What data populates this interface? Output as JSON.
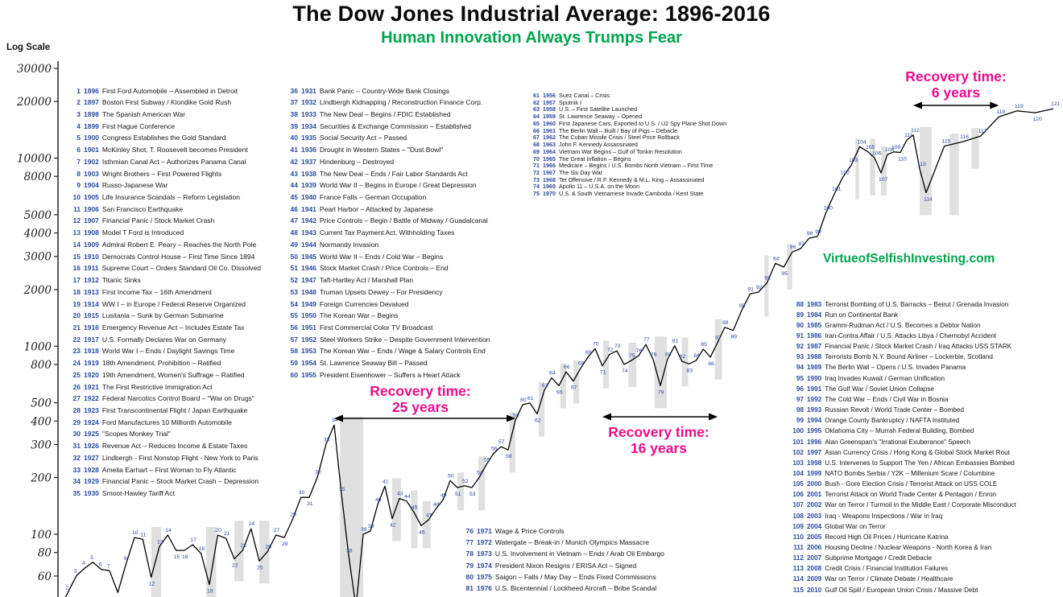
{
  "title": "The Dow Jones Industrial Average: 1896-2016",
  "subtitle": "Human Innovation Always Trumps Fear",
  "log_scale_label": "Log Scale",
  "watermark": "VirtueofSelfishInvesting.com",
  "annotations": [
    {
      "label": "Recovery time:",
      "value": "25 years"
    },
    {
      "label": "Recovery time:",
      "value": "16 years"
    },
    {
      "label": "Recovery time:",
      "value": "6 years"
    }
  ],
  "colors": {
    "title": "#0a0a0a",
    "subtitle_green": "#00a54f",
    "annotation_pink": "#ec0c8c",
    "event_index_blue": "#2c4aa0",
    "watermark_green": "#00a54f",
    "line": "#000000",
    "recession_band": "#d6d6d6"
  },
  "chart_data": {
    "type": "line",
    "title": "The Dow Jones Industrial Average: 1896-2016",
    "xlabel": "",
    "ylabel": "Log Scale",
    "y_scale": "log",
    "ylim": [
      55,
      30000
    ],
    "x_range": [
      1896,
      2016
    ],
    "y_ticks": [
      30000,
      20000,
      10000,
      8000,
      5000,
      4000,
      3000,
      2000,
      1000,
      800,
      500,
      400,
      300,
      200,
      100,
      80,
      60
    ],
    "grid": false,
    "legend": "none",
    "x": [
      1896,
      1897,
      1898,
      1899,
      1900,
      1901,
      1902,
      1903,
      1904,
      1905,
      1906,
      1907,
      1908,
      1909,
      1910,
      1911,
      1912,
      1913,
      1914,
      1915,
      1916,
      1917,
      1918,
      1919,
      1920,
      1921,
      1922,
      1923,
      1924,
      1925,
      1926,
      1927,
      1928,
      1929,
      1930,
      1931,
      1932,
      1933,
      1934,
      1935,
      1936,
      1937,
      1938,
      1939,
      1940,
      1941,
      1942,
      1943,
      1944,
      1945,
      1946,
      1947,
      1948,
      1949,
      1950,
      1951,
      1952,
      1953,
      1954,
      1955,
      1956,
      1957,
      1958,
      1959,
      1960,
      1961,
      1962,
      1963,
      1964,
      1965,
      1966,
      1967,
      1968,
      1969,
      1970,
      1971,
      1972,
      1973,
      1974,
      1975,
      1976,
      1977,
      1978,
      1979,
      1980,
      1981,
      1982,
      1983,
      1984,
      1985,
      1986,
      1987,
      1988,
      1989,
      1990,
      1991,
      1992,
      1993,
      1994,
      1995,
      1996,
      1997,
      1998,
      1999,
      2000,
      2001,
      2002,
      2003,
      2004,
      2005,
      2006,
      2007,
      2008,
      2009,
      2010,
      2011,
      2012,
      2013,
      2014,
      2015,
      2016
    ],
    "values": [
      40,
      49,
      60,
      66,
      71,
      65,
      64,
      49,
      70,
      96,
      94,
      59,
      86,
      99,
      82,
      82,
      88,
      79,
      54,
      99,
      95,
      74,
      82,
      107,
      72,
      81,
      99,
      96,
      120,
      157,
      157,
      202,
      300,
      381,
      164,
      77,
      41,
      100,
      104,
      144,
      180,
      121,
      155,
      150,
      131,
      111,
      119,
      136,
      152,
      193,
      177,
      181,
      177,
      200,
      235,
      269,
      292,
      281,
      404,
      488,
      499,
      436,
      584,
      679,
      616,
      731,
      652,
      763,
      874,
      969,
      786,
      905,
      944,
      800,
      839,
      890,
      1020,
      851,
      616,
      852,
      1005,
      831,
      805,
      839,
      964,
      875,
      1047,
      1259,
      1212,
      1547,
      1896,
      1939,
      2169,
      2753,
      2634,
      3169,
      3301,
      3754,
      3834,
      5117,
      6448,
      7908,
      9181,
      11497,
      10788,
      10021,
      8342,
      10454,
      10783,
      10718,
      12463,
      13265,
      8776,
      6547,
      11578,
      12218,
      13104,
      16577,
      17823,
      17425,
      18308
    ],
    "point_labels_start": 1,
    "recovery_spans": [
      {
        "from_year": 1929,
        "to_year": 1954,
        "years": 25
      },
      {
        "from_year": 1966,
        "to_year": 1982,
        "years": 16
      },
      {
        "from_year": 2007,
        "to_year": 2013,
        "years": 6
      }
    ],
    "recession_bands": [
      [
        1907,
        1908.2
      ],
      [
        1913.6,
        1914.8
      ],
      [
        1917,
        1918.1
      ],
      [
        1920,
        1921.2
      ],
      [
        1929.8,
        1933
      ],
      [
        1937,
        1938.2
      ],
      [
        1939.6,
        1940.5
      ],
      [
        1941.2,
        1942.3
      ],
      [
        1946,
        1946.9
      ],
      [
        1948.9,
        1949.8
      ],
      [
        1953.2,
        1954
      ],
      [
        1957.2,
        1958
      ],
      [
        1960.2,
        1961
      ],
      [
        1962,
        1962.8
      ],
      [
        1966.1,
        1966.9
      ],
      [
        1969.6,
        1970.7
      ],
      [
        1973.2,
        1974.9
      ],
      [
        1977,
        1977.9
      ],
      [
        1981.6,
        1982.6
      ],
      [
        1987.7,
        1988.2
      ],
      [
        1990.4,
        1991
      ],
      [
        1998.5,
        1998.9
      ],
      [
        2000.3,
        2001.1
      ],
      [
        2002,
        2002.9
      ],
      [
        2008,
        2009.3
      ],
      [
        2010.3,
        2010.8
      ],
      [
        2011.5,
        2011.9
      ]
    ]
  },
  "events": {
    "col1": [
      {
        "n": 1,
        "year": 1896,
        "text": "First Ford Automobile – Assembled in Detroit"
      },
      {
        "n": 2,
        "year": 1897,
        "text": "Boston First Subway / Klondike Gold Rush"
      },
      {
        "n": 3,
        "year": 1898,
        "text": "The Spanish American War"
      },
      {
        "n": 4,
        "year": 1899,
        "text": "First Hague Conference"
      },
      {
        "n": 5,
        "year": 1900,
        "text": "Congress Establishes the Gold Standard"
      },
      {
        "n": 6,
        "year": 1901,
        "text": "McKinley Shot, T. Roosevelt becomes President"
      },
      {
        "n": 7,
        "year": 1902,
        "text": "Isthmian Canal Act – Authorizes Panama Canal"
      },
      {
        "n": 8,
        "year": 1903,
        "text": "Wright Brothers – First Powered Flights"
      },
      {
        "n": 9,
        "year": 1904,
        "text": "Russo-Japanese War"
      },
      {
        "n": 10,
        "year": 1905,
        "text": "Life Insurance Scandals – Reform Legislation"
      },
      {
        "n": 11,
        "year": 1906,
        "text": "San Francisco Earthquake"
      },
      {
        "n": 12,
        "year": 1907,
        "text": "Financial Panic / Stock Market Crash"
      },
      {
        "n": 13,
        "year": 1908,
        "text": "Model T Ford is Introduced"
      },
      {
        "n": 14,
        "year": 1909,
        "text": "Admiral Robert E. Peary – Reaches the North Pole"
      },
      {
        "n": 15,
        "year": 1910,
        "text": "Democrats Control House – First Time Since 1894"
      },
      {
        "n": 16,
        "year": 1911,
        "text": "Supreme Court – Orders Standard Oil Co. Dissolved"
      },
      {
        "n": 17,
        "year": 1912,
        "text": "Titanic Sinks"
      },
      {
        "n": 18,
        "year": 1913,
        "text": "First Income Tax – 16th Amendment"
      },
      {
        "n": 19,
        "year": 1914,
        "text": "WW I – in Europe / Federal Reserve Organized"
      },
      {
        "n": 20,
        "year": 1915,
        "text": "Lusitania – Sunk by German Submarine"
      },
      {
        "n": 21,
        "year": 1916,
        "text": "Emergency Revenue Act – Includes Estate Tax"
      },
      {
        "n": 22,
        "year": 1917,
        "text": "U.S. Formally Declares War on Germany"
      },
      {
        "n": 23,
        "year": 1918,
        "text": "World War I – Ends / Daylight Savings Time"
      },
      {
        "n": 24,
        "year": 1919,
        "text": "18th Amendment, Prohibition – Ratified"
      },
      {
        "n": 25,
        "year": 1920,
        "text": "19th Amendment, Women's Suffrage – Ratified"
      },
      {
        "n": 26,
        "year": 1921,
        "text": "The First Restrictive Immigration Act"
      },
      {
        "n": 27,
        "year": 1922,
        "text": "Federal Narcotics Control Board – \"War on Drugs\""
      },
      {
        "n": 28,
        "year": 1923,
        "text": "First Transcontinental Flight / Japan Earthquake"
      },
      {
        "n": 29,
        "year": 1924,
        "text": "Ford Manufactures 10 Millionth Automobile"
      },
      {
        "n": 30,
        "year": 1925,
        "text": "\"Scopes Monkey Trial\""
      },
      {
        "n": 31,
        "year": 1926,
        "text": "Revenue Act – Reduces Income & Estate Taxes"
      },
      {
        "n": 32,
        "year": 1927,
        "text": "Lindbergh - First Nonstop Flight - New York to Paris"
      },
      {
        "n": 33,
        "year": 1928,
        "text": "Amelia Earhart – First Woman to Fly Atlantic"
      },
      {
        "n": 34,
        "year": 1929,
        "text": "Financial Panic – Stock Market Crash – Depression"
      },
      {
        "n": 35,
        "year": 1930,
        "text": "Smoot-Hawley Tariff Act"
      }
    ],
    "col2": [
      {
        "n": 36,
        "year": 1931,
        "text": "Bank Panic – Country-Wide Bank Closings"
      },
      {
        "n": 37,
        "year": 1932,
        "text": "Lindbergh Kidnapping / Reconstruction Finance Corp."
      },
      {
        "n": 38,
        "year": 1933,
        "text": "The New Deal – Begins / FDIC Established"
      },
      {
        "n": 39,
        "year": 1934,
        "text": "Securities & Exchange Commission – Established"
      },
      {
        "n": 40,
        "year": 1935,
        "text": "Social Security Act – Passed"
      },
      {
        "n": 41,
        "year": 1936,
        "text": "Drought in Western States – \"Dust Bowl\""
      },
      {
        "n": 42,
        "year": 1937,
        "text": "Hindenburg – Destroyed"
      },
      {
        "n": 43,
        "year": 1938,
        "text": "The New Deal – Ends / Fair Labor Standards Act"
      },
      {
        "n": 44,
        "year": 1939,
        "text": "World War II – Begins in Europe / Great Depression"
      },
      {
        "n": 45,
        "year": 1940,
        "text": "France Falls – German Occupation"
      },
      {
        "n": 46,
        "year": 1941,
        "text": "Pearl Harbor – Attacked by Japanese"
      },
      {
        "n": 47,
        "year": 1942,
        "text": "Price Controls – Begin / Battle of Midway / Guadalcanal"
      },
      {
        "n": 48,
        "year": 1943,
        "text": "Current Tax Payment Act, Withholding Taxes"
      },
      {
        "n": 49,
        "year": 1944,
        "text": "Normandy Invasion"
      },
      {
        "n": 50,
        "year": 1945,
        "text": "World War II – Ends / Cold War – Begins"
      },
      {
        "n": 51,
        "year": 1946,
        "text": "Stock Market Crash / Price Controls – End"
      },
      {
        "n": 52,
        "year": 1947,
        "text": "Taft-Hartley Act / Marshall Plan"
      },
      {
        "n": 53,
        "year": 1948,
        "text": "Truman Upsets Dewey – For Presidency"
      },
      {
        "n": 54,
        "year": 1949,
        "text": "Foreign Currencies Devalued"
      },
      {
        "n": 55,
        "year": 1950,
        "text": "The Korean War – Begins"
      },
      {
        "n": 56,
        "year": 1951,
        "text": "First Commercial Color TV Broadcast"
      },
      {
        "n": 57,
        "year": 1952,
        "text": "Steel Workers Strike – Despite Government Intervention"
      },
      {
        "n": 58,
        "year": 1953,
        "text": "The Korean War – Ends / Wage & Salary Controls End"
      },
      {
        "n": 59,
        "year": 1954,
        "text": "St. Lawrence Seaway Bill – Passed"
      },
      {
        "n": 60,
        "year": 1955,
        "text": "President Eisenhower – Suffers a Heart Attack"
      }
    ],
    "col3": [
      {
        "n": 61,
        "year": 1956,
        "text": "Suez Canal – Crisis"
      },
      {
        "n": 62,
        "year": 1957,
        "text": "Sputnik I"
      },
      {
        "n": 63,
        "year": 1958,
        "text": "U.S. – First Satellite Launched"
      },
      {
        "n": 64,
        "year": 1959,
        "text": "St. Lawrence Seaway – Opened"
      },
      {
        "n": 65,
        "year": 1960,
        "text": "First Japanese Cars, Exported to U.S. / U2 Spy Plane Shot Down"
      },
      {
        "n": 66,
        "year": 1961,
        "text": "The Berlin Wall – Built / Bay of Pigs – Debacle"
      },
      {
        "n": 67,
        "year": 1962,
        "text": "The Cuban Missile Crisis / Steel Price Rollback"
      },
      {
        "n": 68,
        "year": 1963,
        "text": "John F. Kennedy Assassinated"
      },
      {
        "n": 69,
        "year": 1964,
        "text": "Vietnam War Begins – Gulf of Tonkin Resolution"
      },
      {
        "n": 70,
        "year": 1965,
        "text": "The Great Inflation – Begins"
      },
      {
        "n": 71,
        "year": 1966,
        "text": "Medicare – Begins / U.S. Bombs North Vietnam – First Time"
      },
      {
        "n": 72,
        "year": 1967,
        "text": "The Six Day War"
      },
      {
        "n": 73,
        "year": 1968,
        "text": "Tet Offensive / R.F. Kennedy & M.L. King – Assassinated"
      },
      {
        "n": 74,
        "year": 1969,
        "text": "Apollo 11 – U.S.A. on the Moon"
      },
      {
        "n": 75,
        "year": 1970,
        "text": "U.S. & South Vietnamese Invade Cambodia / Kent State"
      }
    ],
    "col4": [
      {
        "n": 76,
        "year": 1971,
        "text": "Wage & Price Controls"
      },
      {
        "n": 77,
        "year": 1972,
        "text": "Watergate – Break-in / Munich Olympics Massacre"
      },
      {
        "n": 78,
        "year": 1973,
        "text": "U.S. Involvement in Vietnam – Ends / Arab Oil Embargo"
      },
      {
        "n": 79,
        "year": 1974,
        "text": "President Nixon Resigns / ERISA Act – Signed"
      },
      {
        "n": 80,
        "year": 1975,
        "text": "Saigon – Falls / May Day – Ends Fixed Commissions"
      },
      {
        "n": 81,
        "year": 1976,
        "text": "U.S. Bicentennial / Lockheed Aircraft – Bribe Scandal"
      }
    ],
    "col5": [
      {
        "n": 88,
        "year": 1983,
        "text": "Terrorist Bombing of U.S. Barracks – Beirut / Grenada Invasion"
      },
      {
        "n": 89,
        "year": 1984,
        "text": "Run on Continental Bank"
      },
      {
        "n": 90,
        "year": 1985,
        "text": "Gramm-Rudman Act / U.S. Becomes a Debtor Nation"
      },
      {
        "n": 91,
        "year": 1986,
        "text": "Iran-Contra Affair / U.S. Attacks Libya / Chernobyl Accident"
      },
      {
        "n": 92,
        "year": 1987,
        "text": "Financial Panic / Stock Market Crash / Iraq Attacks USS STARK"
      },
      {
        "n": 93,
        "year": 1988,
        "text": "Terrorists Bomb N.Y. Bound Airliner – Lockerbie, Scotland"
      },
      {
        "n": 94,
        "year": 1989,
        "text": "The Berlin Wall – Opens / U.S. Invades Panama"
      },
      {
        "n": 95,
        "year": 1990,
        "text": "Iraq Invades Kuwait / German Unification"
      },
      {
        "n": 96,
        "year": 1991,
        "text": "The Gulf War / Soviet Union Collapse"
      },
      {
        "n": 97,
        "year": 1992,
        "text": "The Cold War – Ends / Civil War in Bosnia"
      },
      {
        "n": 98,
        "year": 1993,
        "text": "Russian Revolt / World Trade Center – Bombed"
      },
      {
        "n": 99,
        "year": 1994,
        "text": "Orange County Bankruptcy / NAFTA Instituted"
      },
      {
        "n": 100,
        "year": 1995,
        "text": "Oklahoma City – Murrah Federal Building, Bombed"
      },
      {
        "n": 101,
        "year": 1996,
        "text": "Alan Greenspan's \"Irrational Exuberance\" Speech"
      },
      {
        "n": 102,
        "year": 1997,
        "text": "Asian Currency Crisis / Hong Kong & Global Stock Market Rout"
      },
      {
        "n": 103,
        "year": 1998,
        "text": "U.S. Intervenes to Support The Yen / African Embassies Bombed"
      },
      {
        "n": 104,
        "year": 1999,
        "text": "NATO Bombs Serbia / Y2K – Millenium Scare / Columbine"
      },
      {
        "n": 105,
        "year": 2000,
        "text": "Bush - Gore Election Crisis / Terrorist Attack on USS COLE"
      },
      {
        "n": 106,
        "year": 2001,
        "text": "Terrorist Attack on World Trade Center & Pentagon / Enron"
      },
      {
        "n": 107,
        "year": 2002,
        "text": "War on Terror / Turmoil in the Middle East / Corporate Misconduct"
      },
      {
        "n": 108,
        "year": 2003,
        "text": "Iraq - Weapons Inspections / War in Iraq"
      },
      {
        "n": 109,
        "year": 2004,
        "text": "Global War on Terror"
      },
      {
        "n": 110,
        "year": 2005,
        "text": "Record High Oil Prices / Hurricane Katrina"
      },
      {
        "n": 111,
        "year": 2006,
        "text": "Housing Decline / Nuclear Weapons - North Korea & Iran"
      },
      {
        "n": 112,
        "year": 2007,
        "text": "Subprime Mortgage / Credit Debacle"
      },
      {
        "n": 113,
        "year": 2008,
        "text": "Credit Crisis / Financial Institution Failures"
      },
      {
        "n": 114,
        "year": 2009,
        "text": "War on Terror / Climate Debate / Healthcare"
      },
      {
        "n": 115,
        "year": 2010,
        "text": "Gulf Oil Spill / European Union Crisis / Massive Debt"
      }
    ]
  }
}
